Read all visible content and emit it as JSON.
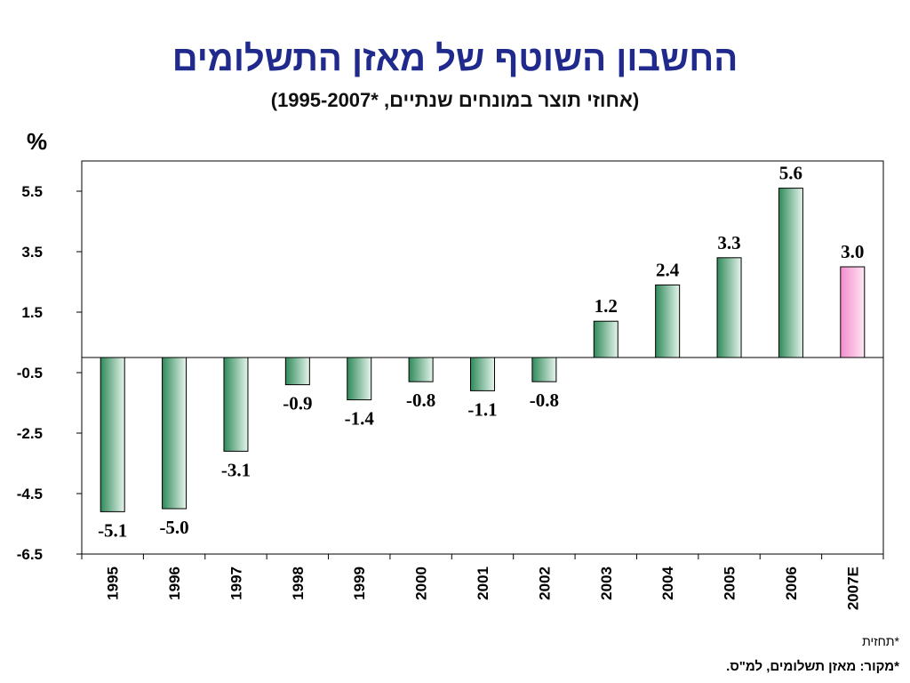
{
  "title": "החשבון השוטף של מאזן התשלומים",
  "subtitle": "(אחוזי תוצר במונחים שנתיים, *1995-2007)",
  "unit": "%",
  "footnotes": {
    "forecast": "*תחזית",
    "source": "*מקור: מאזן תשלומים, למ\"ס."
  },
  "colors": {
    "actual": "#3a9a6a",
    "forecast": "#f7a8d8",
    "title": "#1f2a8c"
  },
  "chart_data": {
    "type": "bar",
    "categories": [
      "1995",
      "1996",
      "1997",
      "1998",
      "1999",
      "2000",
      "2001",
      "2002",
      "2003",
      "2004",
      "2005",
      "2006",
      "2007E"
    ],
    "values": [
      -5.1,
      -5.0,
      -3.1,
      -0.9,
      -1.4,
      -0.8,
      -1.1,
      -0.8,
      1.2,
      2.4,
      3.3,
      5.6,
      3.0
    ],
    "value_labels": [
      "-5.1",
      "-5.0",
      "-3.1",
      "-0.9",
      "-1.4",
      "-0.8",
      "-1.1",
      "-0.8",
      "1.2",
      "2.4",
      "3.3",
      "5.6",
      "3.0"
    ],
    "forecast_categories": [
      "2007E"
    ],
    "yticks": [
      5.5,
      3.5,
      1.5,
      -0.5,
      -2.5,
      -4.5,
      -6.5
    ],
    "ytick_labels": [
      "5.5",
      "3.5",
      "1.5",
      "-0.5",
      "-2.5",
      "-4.5",
      "-6.5"
    ],
    "ylim": [
      -6.5,
      6.5
    ],
    "grid": false,
    "legend": "none"
  }
}
